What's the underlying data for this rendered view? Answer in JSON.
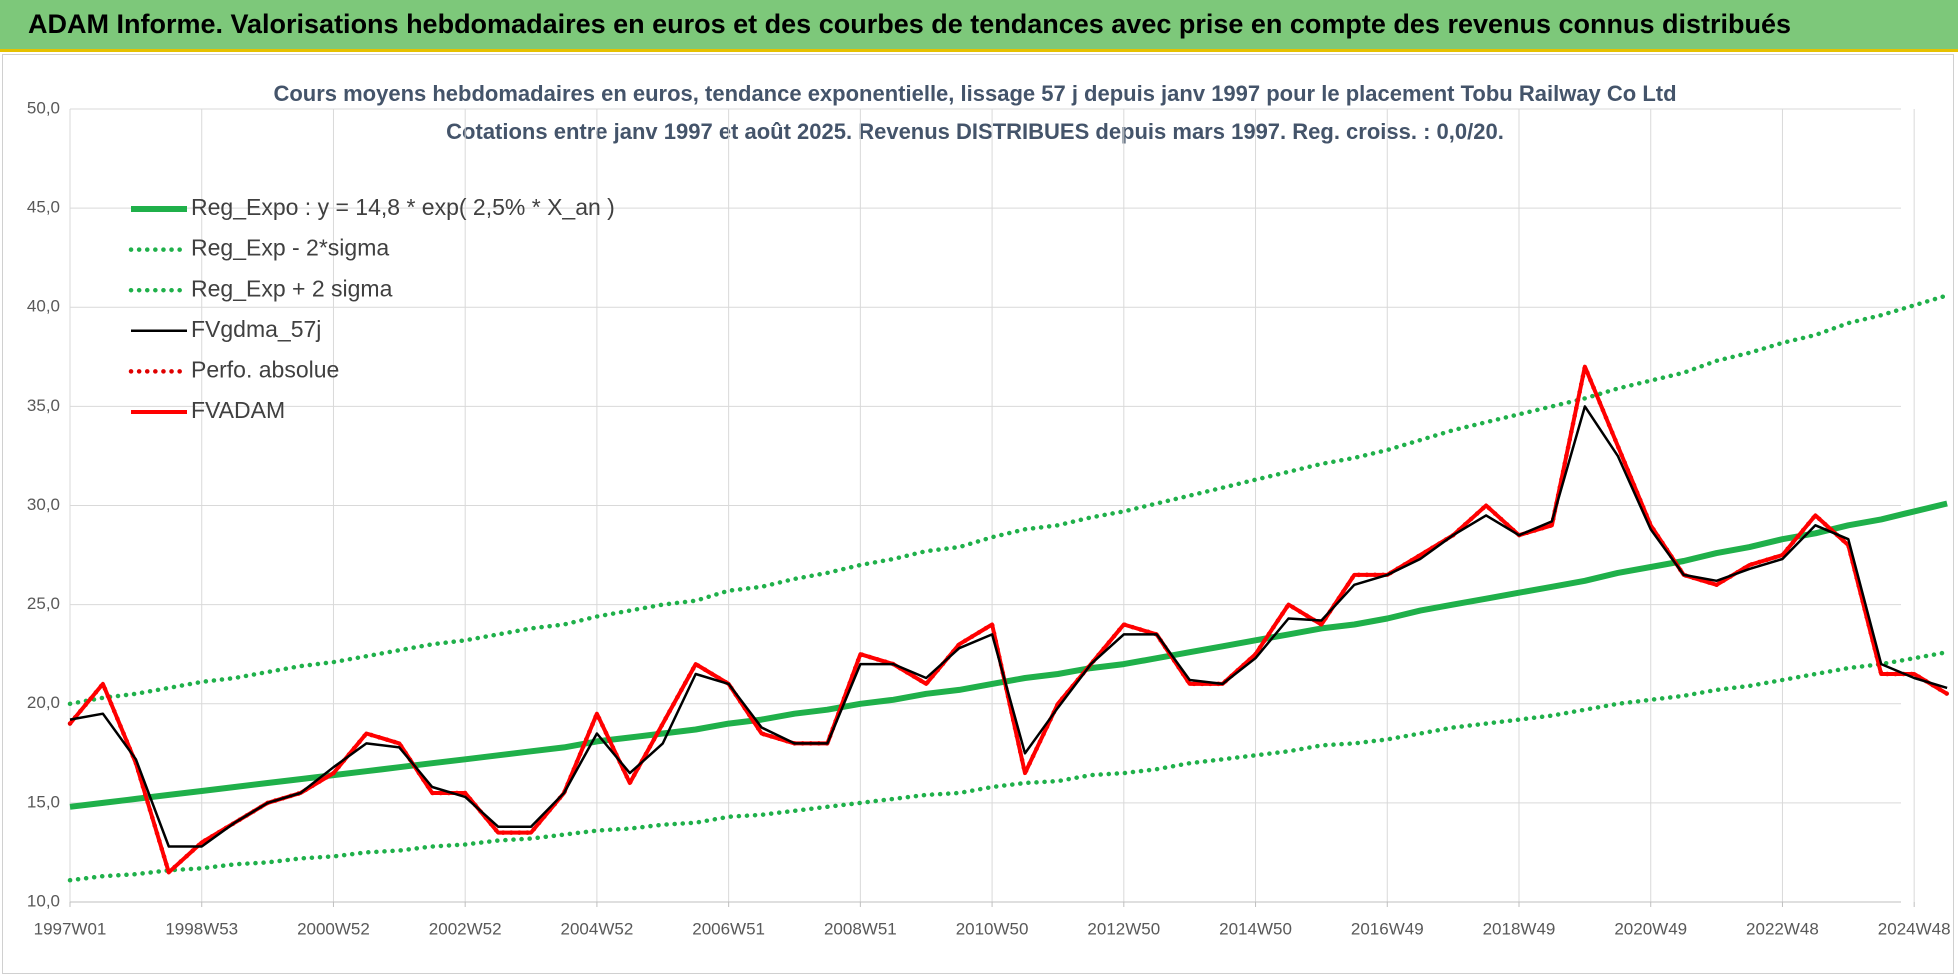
{
  "header": {
    "title": "ADAM Informe. Valorisations hebdomadaires en euros et des courbes de tendances avec prise en compte des revenus connus distribués"
  },
  "chart_data": {
    "type": "line",
    "title": "Cours moyens hebdomadaires en euros, tendance exponentielle, lissage 57 j depuis janv 1997 pour le placement Tobu Railway Co Ltd",
    "subtitle": "Cotations entre janv 1997 et août 2025.  Revenus DISTRIBUES depuis mars 1997. Reg. croiss. : 0,0/20.",
    "categories": [
      "1997W01",
      null,
      null,
      null,
      "1998W53",
      null,
      null,
      null,
      "2000W52",
      null,
      null,
      null,
      "2002W52",
      null,
      null,
      null,
      "2004W52",
      null,
      null,
      null,
      "2006W51",
      null,
      null,
      null,
      "2008W51",
      null,
      null,
      null,
      "2010W50",
      null,
      null,
      null,
      "2012W50",
      null,
      null,
      null,
      "2014W50",
      null,
      null,
      null,
      "2016W49",
      null,
      null,
      null,
      "2018W49",
      null,
      null,
      null,
      "2020W49",
      null,
      null,
      null,
      "2022W48",
      null,
      null,
      null,
      "2024W48",
      null
    ],
    "ylim": [
      10,
      50
    ],
    "yticks": [
      {
        "value": 10,
        "label": "10,0"
      },
      {
        "value": 15,
        "label": "15,0"
      },
      {
        "value": 20,
        "label": "20,0"
      },
      {
        "value": 25,
        "label": "25,0"
      },
      {
        "value": 30,
        "label": "30,0"
      },
      {
        "value": 35,
        "label": "35,0"
      },
      {
        "value": 40,
        "label": "40,0"
      },
      {
        "value": 45,
        "label": "45,0"
      },
      {
        "value": 50,
        "label": "50,0"
      }
    ],
    "grid": true,
    "legend": "upper left",
    "series": [
      {
        "name": "Reg_Expo : y = 14,8 * exp( 2,5% *  X_an )",
        "color": "#1fb04a",
        "style": "solid",
        "values": [
          14.8,
          15.0,
          15.2,
          15.4,
          15.6,
          15.8,
          16.0,
          16.2,
          16.4,
          16.6,
          16.8,
          17.0,
          17.2,
          17.4,
          17.6,
          17.8,
          18.1,
          18.3,
          18.5,
          18.7,
          19.0,
          19.2,
          19.5,
          19.7,
          20.0,
          20.2,
          20.5,
          20.7,
          21.0,
          21.3,
          21.5,
          21.8,
          22.0,
          22.3,
          22.6,
          22.9,
          23.2,
          23.5,
          23.8,
          24.0,
          24.3,
          24.7,
          25.0,
          25.3,
          25.6,
          25.9,
          26.2,
          26.6,
          26.9,
          27.2,
          27.6,
          27.9,
          28.3,
          28.6,
          29.0,
          29.3,
          29.7,
          30.1
        ]
      },
      {
        "name": "Reg_Exp - 2*sigma",
        "color": "#1fb04a",
        "style": "dotted",
        "values": [
          11.1,
          11.3,
          11.4,
          11.6,
          11.7,
          11.9,
          12.0,
          12.2,
          12.3,
          12.5,
          12.6,
          12.8,
          12.9,
          13.1,
          13.2,
          13.4,
          13.6,
          13.7,
          13.9,
          14.0,
          14.3,
          14.4,
          14.6,
          14.8,
          15.0,
          15.2,
          15.4,
          15.5,
          15.8,
          16.0,
          16.1,
          16.4,
          16.5,
          16.7,
          17.0,
          17.2,
          17.4,
          17.6,
          17.9,
          18.0,
          18.2,
          18.5,
          18.8,
          19.0,
          19.2,
          19.4,
          19.7,
          20.0,
          20.2,
          20.4,
          20.7,
          20.9,
          21.2,
          21.5,
          21.8,
          22.0,
          22.3,
          22.6
        ]
      },
      {
        "name": "Reg_Exp + 2 sigma",
        "color": "#1fb04a",
        "style": "dotted",
        "values": [
          20.0,
          20.3,
          20.5,
          20.8,
          21.1,
          21.3,
          21.6,
          21.9,
          22.1,
          22.4,
          22.7,
          23.0,
          23.2,
          23.5,
          23.8,
          24.0,
          24.4,
          24.7,
          25.0,
          25.2,
          25.7,
          25.9,
          26.3,
          26.6,
          27.0,
          27.3,
          27.7,
          27.9,
          28.4,
          28.8,
          29.0,
          29.4,
          29.7,
          30.1,
          30.5,
          30.9,
          31.3,
          31.7,
          32.1,
          32.4,
          32.8,
          33.3,
          33.8,
          34.2,
          34.6,
          35.0,
          35.4,
          35.9,
          36.3,
          36.7,
          37.3,
          37.7,
          38.2,
          38.6,
          39.2,
          39.6,
          40.1,
          40.6
        ]
      },
      {
        "name": "FVgdma_57j",
        "color": "#000000",
        "style": "solid",
        "values": [
          19.2,
          19.5,
          17.2,
          12.8,
          12.8,
          14.0,
          15.0,
          15.5,
          16.8,
          18.0,
          17.8,
          15.8,
          15.3,
          13.8,
          13.8,
          15.5,
          18.5,
          16.5,
          18.0,
          21.5,
          21.0,
          18.8,
          18.0,
          18.0,
          22.0,
          22.0,
          21.3,
          22.8,
          23.5,
          17.5,
          19.8,
          22.0,
          23.5,
          23.5,
          21.2,
          21.0,
          22.3,
          24.3,
          24.2,
          26.0,
          26.5,
          27.3,
          28.5,
          29.5,
          28.5,
          29.2,
          35.0,
          32.5,
          28.8,
          26.5,
          26.2,
          26.8,
          27.3,
          29.0,
          28.3,
          22.0,
          21.3,
          20.8
        ]
      },
      {
        "name": "Perfo. absolue",
        "color": "#e00000",
        "style": "dotted",
        "values": [
          19.0,
          21.0,
          17.0,
          11.5,
          13.0,
          14.0,
          15.0,
          15.5,
          16.5,
          18.5,
          18.0,
          15.5,
          15.5,
          13.5,
          13.5,
          15.5,
          19.5,
          16.0,
          19.0,
          22.0,
          21.0,
          18.5,
          18.0,
          18.0,
          22.5,
          22.0,
          21.0,
          23.0,
          24.0,
          16.5,
          20.0,
          22.0,
          24.0,
          23.5,
          21.0,
          21.0,
          22.5,
          25.0,
          24.0,
          26.5,
          26.5,
          27.5,
          28.5,
          30.0,
          28.5,
          29.0,
          37.0,
          33.0,
          29.0,
          26.5,
          26.0,
          27.0,
          27.5,
          29.5,
          28.0,
          21.5,
          21.5,
          20.5
        ]
      },
      {
        "name": "FVADAM",
        "color": "#ff0000",
        "style": "solid",
        "values": [
          19.0,
          21.0,
          17.0,
          11.5,
          13.0,
          14.0,
          15.0,
          15.5,
          16.5,
          18.5,
          18.0,
          15.5,
          15.5,
          13.5,
          13.5,
          15.5,
          19.5,
          16.0,
          19.0,
          22.0,
          21.0,
          18.5,
          18.0,
          18.0,
          22.5,
          22.0,
          21.0,
          23.0,
          24.0,
          16.5,
          20.0,
          22.0,
          24.0,
          23.5,
          21.0,
          21.0,
          22.5,
          25.0,
          24.0,
          26.5,
          26.5,
          27.5,
          28.5,
          30.0,
          28.5,
          29.0,
          37.0,
          33.0,
          29.0,
          26.5,
          26.0,
          27.0,
          27.5,
          29.5,
          28.0,
          21.5,
          21.5,
          20.5
        ]
      }
    ]
  }
}
